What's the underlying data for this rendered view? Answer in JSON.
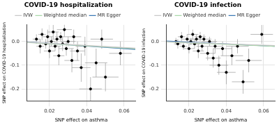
{
  "chart_data": [
    {
      "type": "scatter",
      "title": "COVID-19 hospitalization",
      "x_label": "SNP effect on asthma",
      "y_label": "SNP effect on COVID-19 hospitalization",
      "xlim": [
        0.008,
        0.066
      ],
      "ylim": [
        -0.25,
        0.07
      ],
      "xticks": [
        0.02,
        0.04,
        0.06
      ],
      "yticks": [
        {
          "value": -0.2,
          "label": "-0.2"
        },
        {
          "value": -0.1,
          "label": "-0.1"
        },
        {
          "value": 0,
          "label": "0.0"
        }
      ],
      "grid": true,
      "legend": "top",
      "points": {
        "color": "#000000",
        "marker": "circle",
        "x": [
          0.013,
          0.015,
          0.016,
          0.018,
          0.019,
          0.02,
          0.021,
          0.022,
          0.023,
          0.024,
          0.025,
          0.026,
          0.027,
          0.028,
          0.029,
          0.03,
          0.032,
          0.033,
          0.035,
          0.037,
          0.039,
          0.042,
          0.045,
          0.048,
          0.05,
          0.058
        ],
        "values": [
          0.01,
          -0.02,
          0.03,
          -0.01,
          0.02,
          -0.04,
          0.0,
          0.04,
          -0.02,
          0.01,
          -0.06,
          0.02,
          -0.01,
          0.05,
          -0.03,
          0.0,
          -0.08,
          0.02,
          -0.04,
          -0.11,
          -0.02,
          -0.2,
          -0.09,
          0.01,
          -0.15,
          -0.05
        ],
        "x_err": [
          0.002,
          0.002,
          0.002,
          0.002,
          0.003,
          0.003,
          0.002,
          0.003,
          0.003,
          0.003,
          0.003,
          0.003,
          0.003,
          0.004,
          0.004,
          0.004,
          0.004,
          0.004,
          0.004,
          0.005,
          0.005,
          0.006,
          0.006,
          0.006,
          0.007,
          0.006
        ],
        "y_err": [
          0.02,
          0.03,
          0.025,
          0.02,
          0.03,
          0.03,
          0.02,
          0.03,
          0.02,
          0.03,
          0.04,
          0.02,
          0.03,
          0.03,
          0.03,
          0.02,
          0.05,
          0.03,
          0.04,
          0.06,
          0.04,
          0.05,
          0.06,
          0.04,
          0.06,
          0.05
        ]
      },
      "series": [
        {
          "name": "IVW",
          "color": "#c8c8c8",
          "type": "line",
          "line_style": "solid",
          "x": [
            0.008,
            0.066
          ],
          "values": [
            -0.003,
            -0.028
          ]
        },
        {
          "name": "Weighted median",
          "color": "#a8d8a8",
          "type": "line",
          "line_style": "solid",
          "x": [
            0.008,
            0.066
          ],
          "values": [
            -0.004,
            -0.03
          ]
        },
        {
          "name": "MR Egger",
          "color": "#3a78b5",
          "type": "line",
          "line_style": "solid",
          "x": [
            0.008,
            0.066
          ],
          "values": [
            -0.002,
            -0.033
          ]
        }
      ]
    },
    {
      "type": "scatter",
      "title": "COVID-19 infection",
      "x_label": "SNP effect on asthma",
      "y_label": "SNP effect on COVID-19 infection",
      "xlim": [
        0.008,
        0.066
      ],
      "ylim": [
        -0.25,
        0.07
      ],
      "xticks": [
        0.02,
        0.04,
        0.06
      ],
      "yticks": [
        {
          "value": -0.2,
          "label": "-0.2"
        },
        {
          "value": -0.1,
          "label": "-0.1"
        },
        {
          "value": 0,
          "label": "0.0"
        }
      ],
      "grid": true,
      "legend": "top",
      "points": {
        "color": "#000000",
        "marker": "circle",
        "x": [
          0.013,
          0.014,
          0.016,
          0.017,
          0.019,
          0.02,
          0.021,
          0.022,
          0.023,
          0.024,
          0.025,
          0.026,
          0.027,
          0.028,
          0.03,
          0.031,
          0.033,
          0.034,
          0.036,
          0.038,
          0.04,
          0.043,
          0.046,
          0.049,
          0.052,
          0.059
        ],
        "values": [
          0.0,
          -0.01,
          0.02,
          -0.02,
          0.01,
          -0.03,
          0.0,
          0.03,
          -0.01,
          0.01,
          -0.04,
          0.02,
          -0.02,
          0.01,
          -0.05,
          0.0,
          -0.07,
          -0.02,
          -0.1,
          -0.03,
          -0.13,
          -0.06,
          -0.02,
          -0.17,
          -0.08,
          0.03
        ],
        "x_err": [
          0.002,
          0.002,
          0.002,
          0.002,
          0.003,
          0.003,
          0.002,
          0.003,
          0.003,
          0.003,
          0.003,
          0.003,
          0.003,
          0.004,
          0.004,
          0.004,
          0.004,
          0.004,
          0.005,
          0.005,
          0.005,
          0.006,
          0.006,
          0.006,
          0.007,
          0.006
        ],
        "y_err": [
          0.015,
          0.02,
          0.02,
          0.015,
          0.02,
          0.02,
          0.015,
          0.02,
          0.02,
          0.02,
          0.03,
          0.02,
          0.02,
          0.02,
          0.03,
          0.02,
          0.04,
          0.03,
          0.04,
          0.03,
          0.05,
          0.04,
          0.03,
          0.05,
          0.05,
          0.04
        ]
      },
      "series": [
        {
          "name": "IVW",
          "color": "#c8c8c8",
          "type": "line",
          "line_style": "solid",
          "x": [
            0.008,
            0.066
          ],
          "values": [
            -0.001,
            -0.017
          ]
        },
        {
          "name": "Weighted median",
          "color": "#a8d8a8",
          "type": "line",
          "line_style": "solid",
          "x": [
            0.008,
            0.066
          ],
          "values": [
            -0.002,
            -0.02
          ]
        },
        {
          "name": "MR Egger",
          "color": "#3a78b5",
          "type": "line",
          "line_style": "solid",
          "x": [
            0.008,
            0.066
          ],
          "values": [
            0.002,
            -0.02
          ]
        }
      ]
    }
  ]
}
